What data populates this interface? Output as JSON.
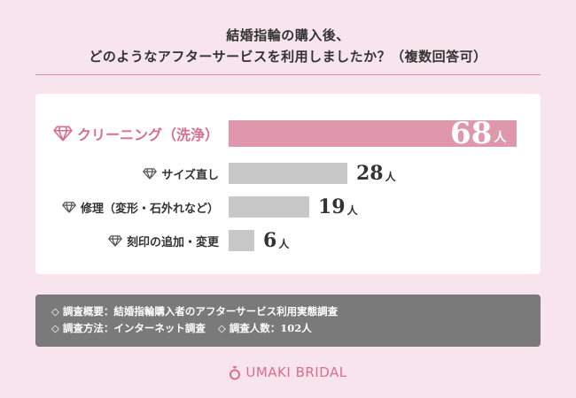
{
  "title": {
    "line1": "結婚指輪の購入後、",
    "line2": "どのようなアフターサービスを利用しましたか？（複数回答可）"
  },
  "chart_data": {
    "type": "bar",
    "orientation": "horizontal",
    "categories": [
      "クリーニング（洗浄）",
      "サイズ直し",
      "修理（変形・石外れなど）",
      "刻印の追加・変更"
    ],
    "values": [
      68,
      28,
      19,
      6
    ],
    "unit": "人",
    "xlim": [
      0,
      68
    ]
  },
  "colors": {
    "highlight_bar": "#de97ab",
    "other_bar": "#c8c8c8",
    "accent": "#d86f8e"
  },
  "icons": {
    "category": "diamond-icon",
    "brand": "ring-icon"
  },
  "footer": {
    "overview": "◇ 調査概要：結婚指輪購入者のアフターサービス利用実態調査",
    "method": "◇ 調査方法：インターネット調査",
    "respondents": "◇ 調査人数：102人"
  },
  "brand": {
    "name": "UMAKI BRIDAL"
  }
}
